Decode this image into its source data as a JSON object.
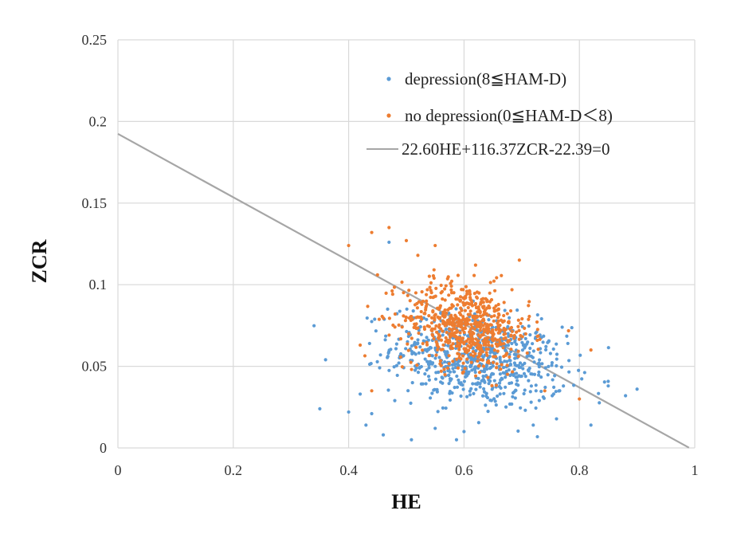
{
  "chart_data": {
    "type": "scatter",
    "xlabel": "HE",
    "ylabel": "ZCR",
    "xlim": [
      0,
      1
    ],
    "ylim": [
      0,
      0.25
    ],
    "xticks": [
      "0",
      "0.2",
      "0.4",
      "0.6",
      "0.8",
      "1"
    ],
    "yticks": [
      "0",
      "0.05",
      "0.1",
      "0.15",
      "0.2",
      "0.25"
    ],
    "grid": true,
    "legend_position": "top-right",
    "colors": {
      "depression": "#5b9bd5",
      "no_depression": "#ed7d31",
      "boundary": "#a6a6a6",
      "grid": "#d9d9d9"
    },
    "legend": [
      {
        "key": "depression",
        "label": "depression(8≦HAM-D)"
      },
      {
        "key": "no_depression",
        "label": "no depression(0≦HAM-D＜8)"
      },
      {
        "key": "boundary",
        "label": "22.60HE+116.37ZCR-22.39=0"
      }
    ],
    "line": {
      "equation": "22.60HE+116.37ZCR-22.39=0",
      "a": 22.6,
      "b": 116.37,
      "c": -22.39,
      "x_range": [
        0,
        0.99
      ]
    },
    "series": [
      {
        "key": "depression",
        "label": "depression(8≦HAM-D)",
        "cluster": {
          "count": 700,
          "x_mean": 0.625,
          "x_sd": 0.075,
          "y_mean": 0.054,
          "y_sd": 0.014,
          "x_range": [
            0.34,
            0.91
          ],
          "y_range": [
            0.005,
            0.105
          ]
        },
        "points": [
          [
            0.35,
            0.024
          ],
          [
            0.36,
            0.054
          ],
          [
            0.4,
            0.022
          ],
          [
            0.42,
            0.033
          ],
          [
            0.43,
            0.014
          ],
          [
            0.46,
            0.008
          ],
          [
            0.47,
            0.126
          ],
          [
            0.44,
            0.021
          ],
          [
            0.48,
            0.029
          ],
          [
            0.9,
            0.036
          ],
          [
            0.88,
            0.032
          ],
          [
            0.82,
            0.014
          ],
          [
            0.85,
            0.038
          ],
          [
            0.72,
            0.014
          ],
          [
            0.78,
            0.064
          ],
          [
            0.55,
            0.012
          ],
          [
            0.6,
            0.01
          ]
        ]
      },
      {
        "key": "no_depression",
        "label": "no depression(0≦HAM-D＜8)",
        "cluster": {
          "count": 650,
          "x_mean": 0.605,
          "x_sd": 0.055,
          "y_mean": 0.075,
          "y_sd": 0.013,
          "x_range": [
            0.41,
            0.83
          ],
          "y_range": [
            0.03,
            0.14
          ]
        },
        "points": [
          [
            0.4,
            0.124
          ],
          [
            0.42,
            0.063
          ],
          [
            0.44,
            0.132
          ],
          [
            0.45,
            0.106
          ],
          [
            0.47,
            0.135
          ],
          [
            0.5,
            0.127
          ],
          [
            0.52,
            0.118
          ],
          [
            0.55,
            0.124
          ],
          [
            0.62,
            0.112
          ],
          [
            0.44,
            0.035
          ],
          [
            0.82,
            0.06
          ],
          [
            0.8,
            0.03
          ],
          [
            0.74,
            0.035
          ]
        ]
      }
    ]
  }
}
